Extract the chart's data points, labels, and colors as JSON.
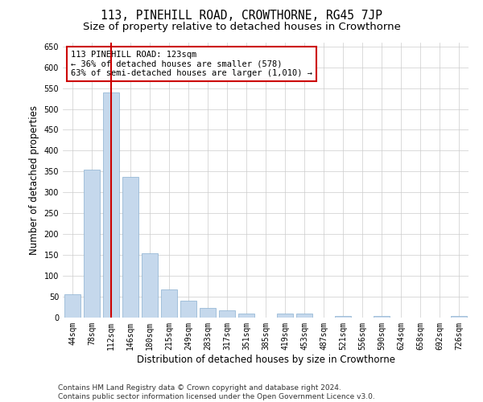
{
  "title": "113, PINEHILL ROAD, CROWTHORNE, RG45 7JP",
  "subtitle": "Size of property relative to detached houses in Crowthorne",
  "xlabel": "Distribution of detached houses by size in Crowthorne",
  "ylabel": "Number of detached properties",
  "categories": [
    "44sqm",
    "78sqm",
    "112sqm",
    "146sqm",
    "180sqm",
    "215sqm",
    "249sqm",
    "283sqm",
    "317sqm",
    "351sqm",
    "385sqm",
    "419sqm",
    "453sqm",
    "487sqm",
    "521sqm",
    "556sqm",
    "590sqm",
    "624sqm",
    "658sqm",
    "692sqm",
    "726sqm"
  ],
  "values": [
    55,
    355,
    540,
    338,
    155,
    67,
    40,
    23,
    18,
    10,
    0,
    9,
    9,
    0,
    3,
    0,
    3,
    0,
    0,
    0,
    3
  ],
  "bar_color": "#c5d8ec",
  "bar_edge_color": "#8ab0d0",
  "highlight_index": 2,
  "highlight_line_color": "#cc0000",
  "annotation_text": "113 PINEHILL ROAD: 123sqm\n← 36% of detached houses are smaller (578)\n63% of semi-detached houses are larger (1,010) →",
  "annotation_box_color": "#ffffff",
  "annotation_box_edge_color": "#cc0000",
  "ylim": [
    0,
    660
  ],
  "yticks": [
    0,
    50,
    100,
    150,
    200,
    250,
    300,
    350,
    400,
    450,
    500,
    550,
    600,
    650
  ],
  "grid_color": "#cccccc",
  "background_color": "#ffffff",
  "footer_line1": "Contains HM Land Registry data © Crown copyright and database right 2024.",
  "footer_line2": "Contains public sector information licensed under the Open Government Licence v3.0.",
  "title_fontsize": 10.5,
  "subtitle_fontsize": 9.5,
  "axis_label_fontsize": 8.5,
  "tick_fontsize": 7,
  "annotation_fontsize": 7.5,
  "footer_fontsize": 6.5
}
